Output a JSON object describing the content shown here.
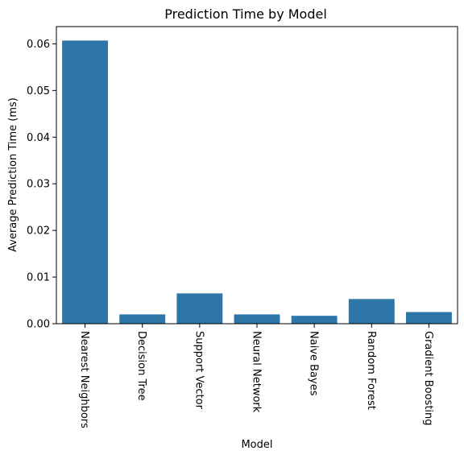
{
  "chart_data": {
    "type": "bar",
    "title": "Prediction Time by Model",
    "xlabel": "Model",
    "ylabel": "Average Prediction Time (ms)",
    "categories": [
      "Nearest Neighbors",
      "Decision Tree",
      "Support Vector",
      "Neural Network",
      "Naive Bayes",
      "Random Forest",
      "Gradient Boosting"
    ],
    "values": [
      0.0607,
      0.002,
      0.0065,
      0.002,
      0.0017,
      0.0053,
      0.0025
    ],
    "ylim": [
      0,
      0.0637
    ],
    "yticks": [
      0.0,
      0.01,
      0.02,
      0.03,
      0.04,
      0.05,
      0.06
    ],
    "ytick_labels": [
      "0.00",
      "0.01",
      "0.02",
      "0.03",
      "0.04",
      "0.05",
      "0.06"
    ],
    "bar_color": "#2e75a8",
    "grid": false,
    "legend": "none"
  }
}
